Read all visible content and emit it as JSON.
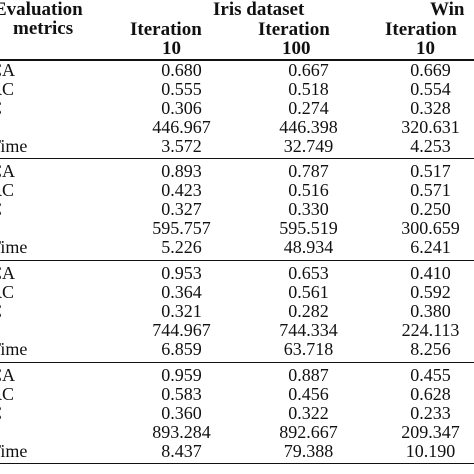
{
  "header": {
    "metric_col_line1": "Evaluation",
    "metric_col_line2": "metrics",
    "dataset1": "Iris dataset",
    "dataset2": "Win",
    "iter_label": "Iteration",
    "iter_a": "10",
    "iter_b": "100",
    "iter_c": "10"
  },
  "groups": [
    {
      "rows": [
        {
          "metric": "CA",
          "v1": "0.680",
          "v2": "0.667",
          "v3": "0.669"
        },
        {
          "metric": "RC",
          "v1": "0.555",
          "v2": "0.518",
          "v3": "0.554"
        },
        {
          "metric": "C",
          "v1": "0.306",
          "v2": "0.274",
          "v3": "0.328"
        },
        {
          "metric": "'",
          "v1": "446.967",
          "v2": "446.398",
          "v3": "320.631"
        },
        {
          "metric": "Time",
          "v1": "3.572",
          "v2": "32.749",
          "v3": "4.253"
        }
      ]
    },
    {
      "rows": [
        {
          "metric": "CA",
          "v1": "0.893",
          "v2": "0.787",
          "v3": "0.517"
        },
        {
          "metric": "RC",
          "v1": "0.423",
          "v2": "0.516",
          "v3": "0.571"
        },
        {
          "metric": "C",
          "v1": "0.327",
          "v2": "0.330",
          "v3": "0.250"
        },
        {
          "metric": "'",
          "v1": "595.757",
          "v2": "595.519",
          "v3": "300.659"
        },
        {
          "metric": "Time",
          "v1": "5.226",
          "v2": "48.934",
          "v3": "6.241"
        }
      ]
    },
    {
      "rows": [
        {
          "metric": "CA",
          "v1": "0.953",
          "v2": "0.653",
          "v3": "0.410"
        },
        {
          "metric": "RC",
          "v1": "0.364",
          "v2": "0.561",
          "v3": "0.592"
        },
        {
          "metric": "C",
          "v1": "0.321",
          "v2": "0.282",
          "v3": "0.380"
        },
        {
          "metric": "'",
          "v1": "744.967",
          "v2": "744.334",
          "v3": "224.113"
        },
        {
          "metric": "Time",
          "v1": "6.859",
          "v2": "63.718",
          "v3": "8.256"
        }
      ]
    },
    {
      "rows": [
        {
          "metric": "CA",
          "v1": "0.959",
          "v2": "0.887",
          "v3": "0.455"
        },
        {
          "metric": "RC",
          "v1": "0.583",
          "v2": "0.456",
          "v3": "0.628"
        },
        {
          "metric": "C",
          "v1": "0.360",
          "v2": "0.322",
          "v3": "0.233"
        },
        {
          "metric": "'",
          "v1": "893.284",
          "v2": "892.667",
          "v3": "209.347"
        },
        {
          "metric": "Time",
          "v1": "8.437",
          "v2": "79.388",
          "v3": "10.190"
        }
      ]
    }
  ]
}
